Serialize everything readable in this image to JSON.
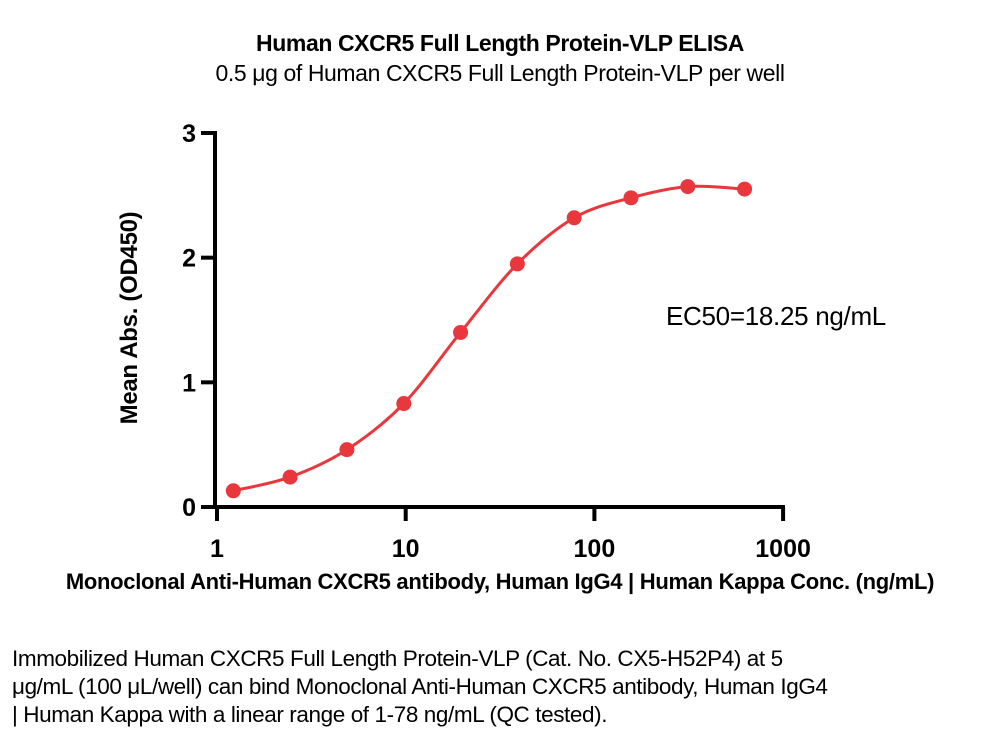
{
  "header": {
    "title": "Human CXCR5 Full Length Protein-VLP ELISA",
    "subtitle": "0.5 μg of Human CXCR5 Full Length Protein-VLP per well"
  },
  "chart_data": {
    "type": "scatter",
    "title": "Human CXCR5 Full Length Protein-VLP ELISA",
    "subtitle": "0.5 μg of Human CXCR5 Full Length Protein-VLP per well",
    "xlabel": "Monoclonal Anti-Human CXCR5 antibody, Human IgG4 | Human Kappa Conc. (ng/mL)",
    "ylabel": "Mean Abs. (OD450)",
    "x_scale": "log10",
    "xlim": [
      1,
      1000
    ],
    "ylim": [
      0,
      3
    ],
    "x_ticks": [
      1,
      10,
      100,
      1000
    ],
    "y_ticks": [
      0,
      1,
      2,
      3
    ],
    "grid": false,
    "legend": false,
    "annotation": "EC50=18.25 ng/mL",
    "ec50_ng_per_ml": 18.25,
    "curve_style": "sigmoidal-4PL-fit",
    "colors": {
      "points": "#e8383d",
      "line": "#e8383d",
      "axis": "#000000"
    },
    "series": [
      {
        "marker": "circle",
        "x": [
          1.22,
          2.44,
          4.88,
          9.77,
          19.53,
          39.06,
          78.13,
          156.25,
          312.5,
          625
        ],
        "y": [
          0.13,
          0.24,
          0.46,
          0.83,
          1.4,
          1.95,
          2.32,
          2.48,
          2.57,
          2.55
        ]
      }
    ]
  },
  "footer": {
    "lines": [
      "Immobilized Human CXCR5 Full Length Protein-VLP (Cat. No. CX5-H52P4) at 5",
      "μg/mL (100 μL/well) can bind Monoclonal Anti-Human CXCR5 antibody, Human IgG4",
      "| Human Kappa with a linear range of 1-78 ng/mL (QC tested)."
    ]
  }
}
